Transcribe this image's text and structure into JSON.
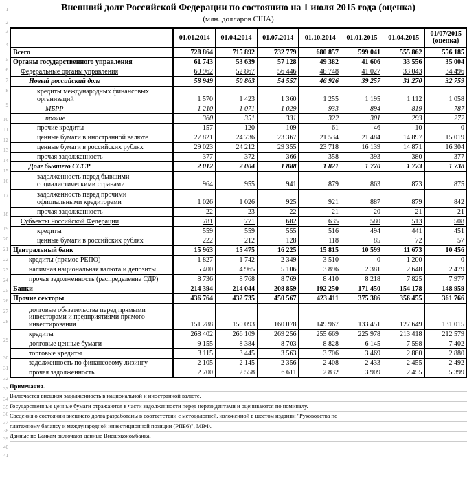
{
  "title": "Внешний долг Российской Федерации по состоянию на 1 июля 2015 года (оценка)",
  "subtitle": "(млн. долларов США)",
  "columns": [
    "01.01.2014",
    "01.04.2014",
    "01.07.2014",
    "01.10.2014",
    "01.01.2015",
    "01.04.2015",
    "01/07/2015 (оценка)"
  ],
  "rows": [
    {
      "lbl": "Всего",
      "cls": "b",
      "ind": 0,
      "v": [
        "728 864",
        "715 892",
        "732 779",
        "680 857",
        "599 041",
        "555 862",
        "556 185"
      ],
      "tt": true
    },
    {
      "lbl": "Органы государственного управления",
      "cls": "b",
      "ind": 0,
      "v": [
        "61 743",
        "53 639",
        "57 128",
        "49 382",
        "41 606",
        "33 556",
        "35 004"
      ]
    },
    {
      "lbl": "Федеральные органы управления",
      "cls": "u",
      "ind": 1,
      "v": [
        "60 962",
        "52 867",
        "56 446",
        "48 748",
        "41 027",
        "33 043",
        "34 496"
      ],
      "uvals": true
    },
    {
      "lbl": "Новый российский долг",
      "cls": "b i",
      "ind": 2,
      "v": [
        "58 949",
        "50 863",
        "54 557",
        "46 926",
        "39 257",
        "31 270",
        "32 759"
      ]
    },
    {
      "lbl": "кредиты международных финансовых организаций",
      "ind": 3,
      "tall": true,
      "v": [
        "1 570",
        "1 423",
        "1 360",
        "1 255",
        "1 195",
        "1 112",
        "1 058"
      ]
    },
    {
      "lbl": "МБРР",
      "cls": "i",
      "ind": 4,
      "v": [
        "1 210",
        "1 071",
        "1 029",
        "933",
        "894",
        "819",
        "787"
      ]
    },
    {
      "lbl": "прочие",
      "cls": "i",
      "ind": 4,
      "v": [
        "360",
        "351",
        "331",
        "322",
        "301",
        "293",
        "272"
      ]
    },
    {
      "lbl": "прочие кредиты",
      "ind": 3,
      "v": [
        "157",
        "120",
        "109",
        "61",
        "46",
        "10",
        "0"
      ]
    },
    {
      "lbl": "ценные бумаги в иностранной валюте",
      "ind": 3,
      "v": [
        "27 821",
        "24 736",
        "23 367",
        "21 534",
        "21 484",
        "14 897",
        "15 019"
      ]
    },
    {
      "lbl": "ценные бумаги в российских рублях",
      "ind": 3,
      "v": [
        "29 023",
        "24 212",
        "29 355",
        "23 718",
        "16 139",
        "14 871",
        "16 304"
      ]
    },
    {
      "lbl": "прочая задолженность",
      "ind": 3,
      "v": [
        "377",
        "372",
        "366",
        "358",
        "393",
        "380",
        "377"
      ]
    },
    {
      "lbl": "Долг бывшего СССР",
      "cls": "b i",
      "ind": 2,
      "v": [
        "2 012",
        "2 004",
        "1 888",
        "1 821",
        "1 770",
        "1 773",
        "1 738"
      ]
    },
    {
      "lbl": "задолженность перед бывшими социалистическими странами",
      "ind": 3,
      "tall": true,
      "v": [
        "964",
        "955",
        "941",
        "879",
        "863",
        "873",
        "875"
      ]
    },
    {
      "lbl": "задолженность перед прочими официальными кредиторами",
      "ind": 3,
      "tall": true,
      "v": [
        "1 026",
        "1 026",
        "925",
        "921",
        "887",
        "879",
        "842"
      ]
    },
    {
      "lbl": "прочая задолженность",
      "ind": 3,
      "v": [
        "22",
        "23",
        "22",
        "21",
        "20",
        "21",
        "21"
      ]
    },
    {
      "lbl": "Субъекты Российской Федерации",
      "cls": "u",
      "ind": 1,
      "v": [
        "781",
        "771",
        "682",
        "635",
        "580",
        "513",
        "508"
      ],
      "uvals": true
    },
    {
      "lbl": "кредиты",
      "ind": 3,
      "v": [
        "559",
        "559",
        "555",
        "516",
        "494",
        "441",
        "451"
      ]
    },
    {
      "lbl": "ценные бумаги в российских рублях",
      "ind": 3,
      "v": [
        "222",
        "212",
        "128",
        "118",
        "85",
        "72",
        "57"
      ]
    },
    {
      "lbl": "Центральный банк",
      "cls": "b",
      "ind": 0,
      "v": [
        "15 963",
        "15 475",
        "16 225",
        "15 815",
        "10 599",
        "11 673",
        "10 456"
      ],
      "tt": true
    },
    {
      "lbl": "кредиты (прямое РЕПО)",
      "ind": 2,
      "v": [
        "1 827",
        "1 742",
        "2 349",
        "3 510",
        "0",
        "1 200",
        "0"
      ]
    },
    {
      "lbl": "наличная национальная валюта и депозиты",
      "ind": 2,
      "v": [
        "5 400",
        "4 965",
        "5 106",
        "3 896",
        "2 381",
        "2 648",
        "2 479"
      ]
    },
    {
      "lbl": "прочая задолженность (распределение СДР)",
      "ind": 2,
      "v": [
        "8 736",
        "8 768",
        "8 769",
        "8 410",
        "8 218",
        "7 825",
        "7 977"
      ]
    },
    {
      "lbl": "Банки",
      "cls": "b",
      "ind": 0,
      "v": [
        "214 394",
        "214 044",
        "208 859",
        "192 250",
        "171 450",
        "154 178",
        "148 959"
      ],
      "tt": true
    },
    {
      "lbl": "Прочие секторы",
      "cls": "b",
      "ind": 0,
      "v": [
        "436 764",
        "432 735",
        "450 567",
        "423 411",
        "375 386",
        "356 455",
        "361 766"
      ],
      "tt": true
    },
    {
      "lbl": "долговые обязательства перед прямыми инвесторами и предприятиями прямого инвестирования",
      "ind": 2,
      "tall3": true,
      "v": [
        "151 288",
        "150 093",
        "160 078",
        "149 967",
        "133 451",
        "127 649",
        "131 015"
      ]
    },
    {
      "lbl": "кредиты",
      "ind": 2,
      "v": [
        "268 402",
        "266 109",
        "269 256",
        "255 669",
        "225 978",
        "213 418",
        "212 579"
      ]
    },
    {
      "lbl": "долговые ценные бумаги",
      "ind": 2,
      "v": [
        "9 155",
        "8 384",
        "8 703",
        "8 828",
        "6 145",
        "7 598",
        "7 402"
      ]
    },
    {
      "lbl": "торговые кредиты",
      "ind": 2,
      "v": [
        "3 115",
        "3 445",
        "3 563",
        "3 706",
        "3 469",
        "2 880",
        "2 880"
      ]
    },
    {
      "lbl": "задолженность по финансовому лизингу",
      "ind": 2,
      "v": [
        "2 105",
        "2 145",
        "2 356",
        "2 408",
        "2 433",
        "2 455",
        "2 492"
      ]
    },
    {
      "lbl": "прочая задолженность",
      "ind": 2,
      "v": [
        "2 700",
        "2 558",
        "6 611",
        "2 832",
        "3 909",
        "2 455",
        "5 399"
      ],
      "tb": true
    }
  ],
  "footer": {
    "heading": "Примечания.",
    "lines": [
      "Включается внешняя задолженность в национальной и иностранной валюте.",
      "Государственные ценные бумаги отражаются в части задолженности перед нерезидентами и оцениваются по номиналу.",
      "Сведения о состоянии внешнего долга разработаны в соответствии с методологией, изложенной в шестом издании \"Руководства по",
      "платежному балансу и международной инвестиционной позиции (РПБ6)\", МВФ.",
      "Данные по Банкам включают данные Внешэкономбанка."
    ]
  },
  "rownums": [
    {
      "n": 1,
      "h": 20
    },
    {
      "n": 2,
      "h": 18
    },
    {
      "n": 3,
      "h": 8
    },
    {
      "n": 4,
      "h": 30
    },
    {
      "n": 5,
      "h": 15
    },
    {
      "n": 6,
      "h": 15
    },
    {
      "n": 7,
      "h": 15
    },
    {
      "n": 8,
      "h": 15
    },
    {
      "n": 9,
      "h": 27
    },
    {
      "n": 10,
      "h": 15
    },
    {
      "n": 11,
      "h": 15
    },
    {
      "n": 12,
      "h": 15
    },
    {
      "n": 13,
      "h": 15
    },
    {
      "n": 14,
      "h": 15
    },
    {
      "n": 15,
      "h": 15
    },
    {
      "n": 16,
      "h": 15
    },
    {
      "n": 17,
      "h": 27
    },
    {
      "n": 18,
      "h": 27
    },
    {
      "n": 19,
      "h": 15
    },
    {
      "n": 20,
      "h": 15
    },
    {
      "n": 21,
      "h": 15
    },
    {
      "n": 22,
      "h": 15
    },
    {
      "n": 23,
      "h": 15
    },
    {
      "n": 24,
      "h": 15
    },
    {
      "n": 25,
      "h": 15
    },
    {
      "n": 26,
      "h": 15
    },
    {
      "n": 27,
      "h": 15
    },
    {
      "n": 28,
      "h": 15
    },
    {
      "n": 29,
      "h": 38
    },
    {
      "n": 30,
      "h": 15
    },
    {
      "n": 31,
      "h": 15
    },
    {
      "n": 32,
      "h": 15
    },
    {
      "n": 33,
      "h": 15
    },
    {
      "n": 34,
      "h": 15
    },
    {
      "n": 35,
      "h": 8
    },
    {
      "n": 36,
      "h": 12
    },
    {
      "n": 37,
      "h": 12
    },
    {
      "n": 38,
      "h": 12
    },
    {
      "n": 39,
      "h": 12
    },
    {
      "n": 40,
      "h": 12
    },
    {
      "n": 41,
      "h": 12
    }
  ]
}
